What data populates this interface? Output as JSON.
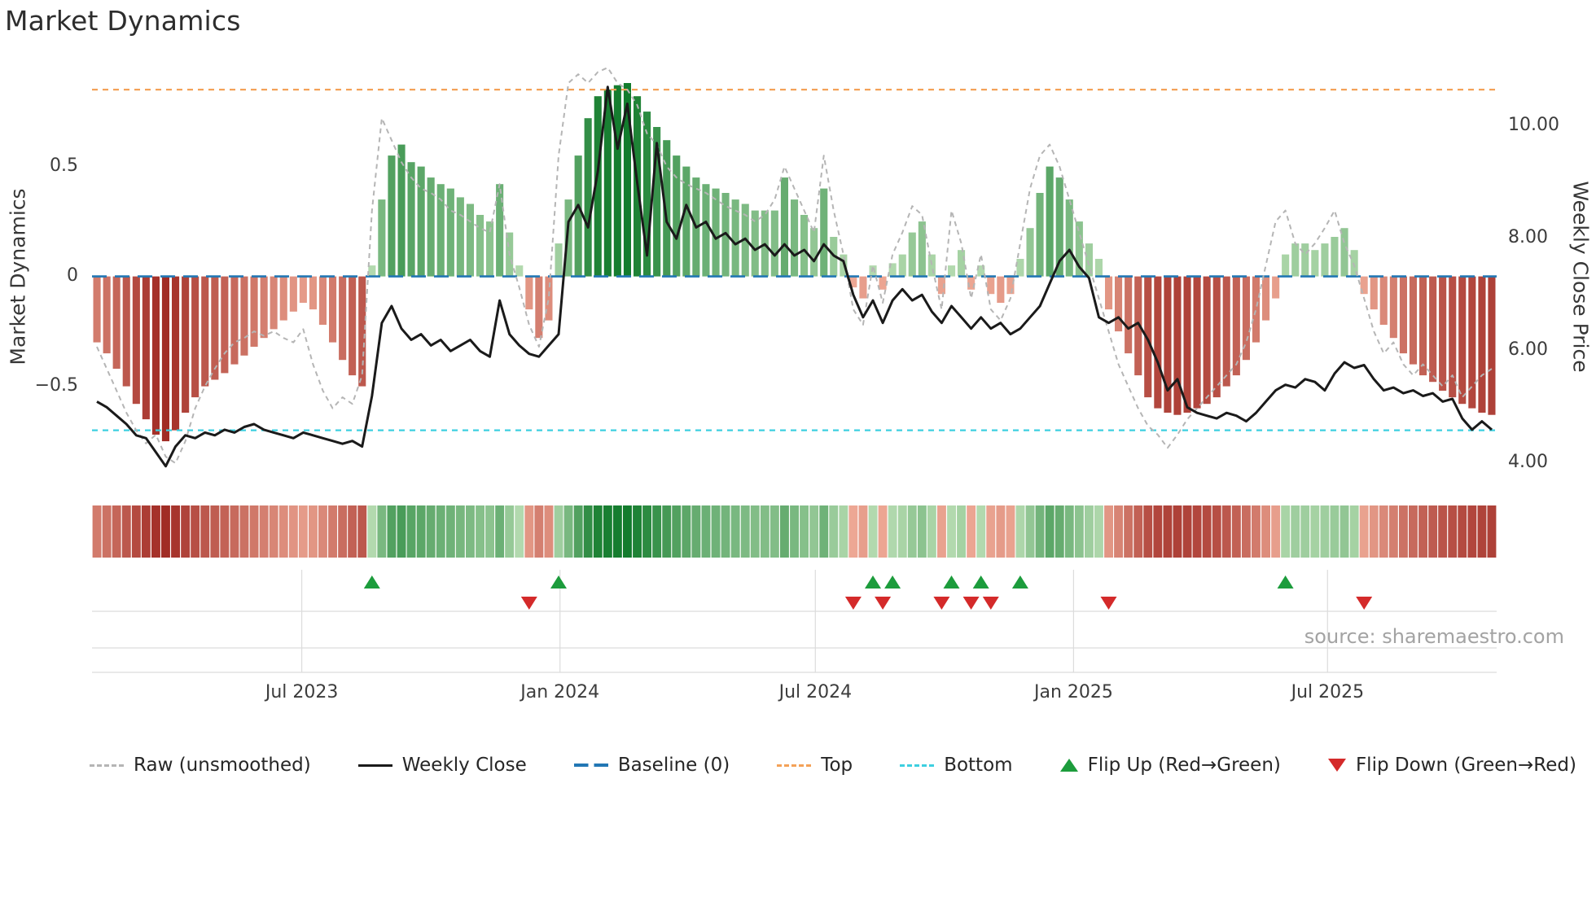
{
  "title": "Market Dynamics",
  "source_text": "source: sharemaestro.com",
  "axes": {
    "left": {
      "label": "Market Dynamics",
      "ticks": [
        {
          "label": "0.5",
          "value": 0.5
        },
        {
          "label": "0",
          "value": 0
        },
        {
          "label": "−0.5",
          "value": -0.5
        }
      ]
    },
    "right": {
      "label": "Weekly Close Price",
      "ticks": [
        {
          "label": "10.00",
          "value": 10
        },
        {
          "label": "8.00",
          "value": 8
        },
        {
          "label": "6.00",
          "value": 6
        },
        {
          "label": "4.00",
          "value": 4
        }
      ]
    },
    "x": {
      "ticks": [
        {
          "label": "Jul 2023",
          "date": "2023-07-01"
        },
        {
          "label": "Jan 2024",
          "date": "2024-01-01"
        },
        {
          "label": "Jul 2024",
          "date": "2024-07-01"
        },
        {
          "label": "Jan 2025",
          "date": "2025-01-01"
        },
        {
          "label": "Jul 2025",
          "date": "2025-07-01"
        }
      ]
    }
  },
  "legend": [
    {
      "label": "Raw (unsmoothed)",
      "swatch": "dashed-line",
      "color": "#b5b5b5"
    },
    {
      "label": "Weekly Close",
      "swatch": "solid-line",
      "color": "#1a1a1a"
    },
    {
      "label": "Baseline (0)",
      "swatch": "long-dash-line",
      "color": "#2277b4"
    },
    {
      "label": "Top",
      "swatch": "dashed-line",
      "color": "#f4a258"
    },
    {
      "label": "Bottom",
      "swatch": "dashed-line",
      "color": "#3ecfe0"
    },
    {
      "label": "Flip Up (Red→Green)",
      "swatch": "triangle-up",
      "color": "#1c9c3c"
    },
    {
      "label": "Flip Down (Green→Red)",
      "swatch": "triangle-down",
      "color": "#d42a2a"
    }
  ],
  "colors": {
    "bar_green_low": "#bcdfb6",
    "bar_green_high": "#137c2d",
    "bar_red_low": "#f2b09c",
    "bar_red_high": "#9c231d",
    "raw_line": "#b5b5b5",
    "close_line": "#1a1a1a",
    "baseline": "#2277b4",
    "top_line": "#f4a258",
    "bottom_line": "#3ecfe0",
    "flip_up": "#1c9c3c",
    "flip_down": "#d42a2a",
    "grid": "#dcdcdc",
    "text": "#3c3c3c",
    "muted_text": "#a3a3a3"
  },
  "chart_data": {
    "type": "bar",
    "title": "Market Dynamics",
    "xlabel": "",
    "ylabel_left": "Market Dynamics",
    "ylabel_right": "Weekly Close Price",
    "legend_position": "bottom",
    "grid": "bottom-panel-only",
    "x_start_date": "2023-02-05",
    "x_step_days": 7,
    "left_ylim": [
      -0.92,
      0.98
    ],
    "right_ylim": [
      3.73,
      11.16
    ],
    "reference_lines": {
      "baseline": 0,
      "top": 0.85,
      "bottom": -0.7
    },
    "panels": [
      "main-chart",
      "heatmap-strip",
      "flip-marker-strip"
    ],
    "dates": [
      "2023-02-05",
      "2023-02-12",
      "2023-02-19",
      "2023-02-26",
      "2023-03-05",
      "2023-03-12",
      "2023-03-19",
      "2023-03-26",
      "2023-04-02",
      "2023-04-09",
      "2023-04-16",
      "2023-04-23",
      "2023-04-30",
      "2023-05-07",
      "2023-05-14",
      "2023-05-21",
      "2023-05-28",
      "2023-06-04",
      "2023-06-11",
      "2023-06-18",
      "2023-06-25",
      "2023-07-02",
      "2023-07-09",
      "2023-07-16",
      "2023-07-23",
      "2023-07-30",
      "2023-08-06",
      "2023-08-13",
      "2023-08-20",
      "2023-08-27",
      "2023-09-03",
      "2023-09-10",
      "2023-09-17",
      "2023-09-24",
      "2023-10-01",
      "2023-10-08",
      "2023-10-15",
      "2023-10-22",
      "2023-10-29",
      "2023-11-05",
      "2023-11-12",
      "2023-11-19",
      "2023-11-26",
      "2023-12-03",
      "2023-12-10",
      "2023-12-17",
      "2023-12-24",
      "2023-12-31",
      "2024-01-07",
      "2024-01-14",
      "2024-01-21",
      "2024-01-28",
      "2024-02-04",
      "2024-02-11",
      "2024-02-18",
      "2024-02-25",
      "2024-03-03",
      "2024-03-10",
      "2024-03-17",
      "2024-03-24",
      "2024-03-31",
      "2024-04-07",
      "2024-04-14",
      "2024-04-21",
      "2024-04-28",
      "2024-05-05",
      "2024-05-12",
      "2024-05-19",
      "2024-05-26",
      "2024-06-02",
      "2024-06-09",
      "2024-06-16",
      "2024-06-23",
      "2024-06-30",
      "2024-07-07",
      "2024-07-14",
      "2024-07-21",
      "2024-07-28",
      "2024-08-04",
      "2024-08-11",
      "2024-08-18",
      "2024-08-25",
      "2024-09-01",
      "2024-09-08",
      "2024-09-15",
      "2024-09-22",
      "2024-09-29",
      "2024-10-06",
      "2024-10-13",
      "2024-10-20",
      "2024-10-27",
      "2024-11-03",
      "2024-11-10",
      "2024-11-17",
      "2024-11-24",
      "2024-12-01",
      "2024-12-08",
      "2024-12-15",
      "2024-12-22",
      "2024-12-29",
      "2025-01-05",
      "2025-01-12",
      "2025-01-19",
      "2025-01-26",
      "2025-02-02",
      "2025-02-09",
      "2025-02-16",
      "2025-02-23",
      "2025-03-02",
      "2025-03-09",
      "2025-03-16",
      "2025-03-23",
      "2025-03-30",
      "2025-04-06",
      "2025-04-13",
      "2025-04-20",
      "2025-04-27",
      "2025-05-04",
      "2025-05-11",
      "2025-05-18",
      "2025-05-25",
      "2025-06-01",
      "2025-06-08",
      "2025-06-15",
      "2025-06-22",
      "2025-06-29",
      "2025-07-06",
      "2025-07-13",
      "2025-07-20",
      "2025-07-27",
      "2025-08-03",
      "2025-08-10",
      "2025-08-17",
      "2025-08-24",
      "2025-08-31",
      "2025-09-07",
      "2025-09-14",
      "2025-09-21",
      "2025-09-28",
      "2025-10-05",
      "2025-10-12",
      "2025-10-19",
      "2025-10-26"
    ],
    "series": [
      {
        "name": "Market Dynamics (smoothed bars)",
        "type": "bar",
        "axis": "left",
        "values": [
          -0.3,
          -0.35,
          -0.42,
          -0.5,
          -0.58,
          -0.65,
          -0.72,
          -0.75,
          -0.7,
          -0.62,
          -0.55,
          -0.5,
          -0.47,
          -0.44,
          -0.4,
          -0.36,
          -0.32,
          -0.28,
          -0.24,
          -0.2,
          -0.16,
          -0.12,
          -0.15,
          -0.22,
          -0.3,
          -0.38,
          -0.45,
          -0.5,
          0.05,
          0.35,
          0.55,
          0.6,
          0.52,
          0.5,
          0.45,
          0.42,
          0.4,
          0.36,
          0.33,
          0.28,
          0.25,
          0.42,
          0.2,
          0.05,
          -0.15,
          -0.28,
          -0.2,
          0.15,
          0.35,
          0.55,
          0.72,
          0.82,
          0.85,
          0.87,
          0.88,
          0.82,
          0.75,
          0.68,
          0.62,
          0.55,
          0.5,
          0.45,
          0.42,
          0.4,
          0.38,
          0.35,
          0.33,
          0.3,
          0.3,
          0.3,
          0.45,
          0.35,
          0.28,
          0.22,
          0.4,
          0.18,
          0.1,
          -0.05,
          -0.1,
          0.05,
          -0.06,
          0.06,
          0.1,
          0.2,
          0.25,
          0.1,
          -0.08,
          0.05,
          0.12,
          -0.06,
          0.05,
          -0.08,
          -0.12,
          -0.08,
          0.08,
          0.22,
          0.38,
          0.5,
          0.45,
          0.35,
          0.25,
          0.15,
          0.08,
          -0.15,
          -0.25,
          -0.35,
          -0.45,
          -0.55,
          -0.6,
          -0.62,
          -0.63,
          -0.62,
          -0.6,
          -0.58,
          -0.55,
          -0.5,
          -0.45,
          -0.38,
          -0.3,
          -0.2,
          -0.1,
          0.1,
          0.15,
          0.15,
          0.12,
          0.15,
          0.18,
          0.22,
          0.12,
          -0.08,
          -0.15,
          -0.22,
          -0.28,
          -0.35,
          -0.4,
          -0.45,
          -0.48,
          -0.52,
          -0.55,
          -0.58,
          -0.6,
          -0.62,
          -0.63
        ]
      },
      {
        "name": "Raw (unsmoothed)",
        "type": "line",
        "axis": "left",
        "values": [
          -0.32,
          -0.42,
          -0.52,
          -0.62,
          -0.7,
          -0.76,
          -0.72,
          -0.82,
          -0.85,
          -0.75,
          -0.6,
          -0.5,
          -0.42,
          -0.35,
          -0.3,
          -0.28,
          -0.25,
          -0.27,
          -0.25,
          -0.28,
          -0.3,
          -0.24,
          -0.4,
          -0.52,
          -0.6,
          -0.55,
          -0.58,
          -0.45,
          0.3,
          0.72,
          0.62,
          0.52,
          0.45,
          0.4,
          0.38,
          0.35,
          0.3,
          0.28,
          0.25,
          0.22,
          0.2,
          0.42,
          0.1,
          -0.05,
          -0.22,
          -0.32,
          -0.1,
          0.55,
          0.88,
          0.92,
          0.88,
          0.93,
          0.95,
          0.88,
          0.85,
          0.78,
          0.65,
          0.6,
          0.5,
          0.45,
          0.42,
          0.4,
          0.38,
          0.35,
          0.32,
          0.3,
          0.28,
          0.25,
          0.28,
          0.35,
          0.5,
          0.4,
          0.3,
          0.2,
          0.55,
          0.3,
          0.1,
          -0.15,
          -0.22,
          0.05,
          -0.12,
          0.1,
          0.2,
          0.32,
          0.28,
          0.05,
          -0.15,
          0.3,
          0.15,
          -0.1,
          0.1,
          -0.15,
          -0.2,
          -0.1,
          0.15,
          0.4,
          0.55,
          0.6,
          0.5,
          0.35,
          0.2,
          0.05,
          -0.1,
          -0.25,
          -0.4,
          -0.5,
          -0.6,
          -0.68,
          -0.72,
          -0.78,
          -0.72,
          -0.65,
          -0.6,
          -0.55,
          -0.5,
          -0.45,
          -0.4,
          -0.3,
          -0.15,
          0.05,
          0.25,
          0.3,
          0.15,
          0.1,
          0.15,
          0.22,
          0.3,
          0.15,
          0.05,
          -0.1,
          -0.25,
          -0.35,
          -0.3,
          -0.4,
          -0.45,
          -0.4,
          -0.45,
          -0.5,
          -0.45,
          -0.55,
          -0.5,
          -0.45,
          -0.42
        ]
      },
      {
        "name": "Weekly Close",
        "type": "line",
        "axis": "right",
        "values": [
          5.1,
          5.0,
          4.85,
          4.7,
          4.5,
          4.45,
          4.2,
          3.95,
          4.3,
          4.5,
          4.45,
          4.55,
          4.5,
          4.6,
          4.55,
          4.65,
          4.7,
          4.6,
          4.55,
          4.5,
          4.45,
          4.55,
          4.5,
          4.45,
          4.4,
          4.35,
          4.4,
          4.3,
          5.2,
          6.5,
          6.8,
          6.4,
          6.2,
          6.3,
          6.1,
          6.2,
          6.0,
          6.1,
          6.2,
          6.0,
          5.9,
          6.9,
          6.3,
          6.1,
          5.95,
          5.9,
          6.1,
          6.3,
          8.3,
          8.6,
          8.2,
          9.2,
          10.7,
          9.6,
          10.4,
          9.0,
          7.7,
          9.7,
          8.3,
          8.0,
          8.6,
          8.2,
          8.3,
          8.0,
          8.1,
          7.9,
          8.0,
          7.8,
          7.9,
          7.7,
          7.9,
          7.7,
          7.8,
          7.6,
          7.9,
          7.7,
          7.6,
          7.0,
          6.6,
          6.9,
          6.5,
          6.9,
          7.1,
          6.9,
          7.0,
          6.7,
          6.5,
          6.8,
          6.6,
          6.4,
          6.6,
          6.4,
          6.5,
          6.3,
          6.4,
          6.6,
          6.8,
          7.2,
          7.6,
          7.8,
          7.5,
          7.3,
          6.6,
          6.5,
          6.6,
          6.4,
          6.5,
          6.2,
          5.8,
          5.3,
          5.5,
          5.0,
          4.9,
          4.85,
          4.8,
          4.9,
          4.85,
          4.75,
          4.9,
          5.1,
          5.3,
          5.4,
          5.35,
          5.5,
          5.45,
          5.3,
          5.6,
          5.8,
          5.7,
          5.75,
          5.5,
          5.3,
          5.35,
          5.25,
          5.3,
          5.2,
          5.25,
          5.1,
          5.15,
          4.8,
          4.6,
          4.75,
          4.6
        ]
      }
    ],
    "flip_up_indices": [
      28,
      47,
      79,
      81,
      87,
      90,
      94,
      121
    ],
    "flip_down_indices": [
      44,
      77,
      80,
      86,
      89,
      91,
      103,
      129
    ]
  }
}
